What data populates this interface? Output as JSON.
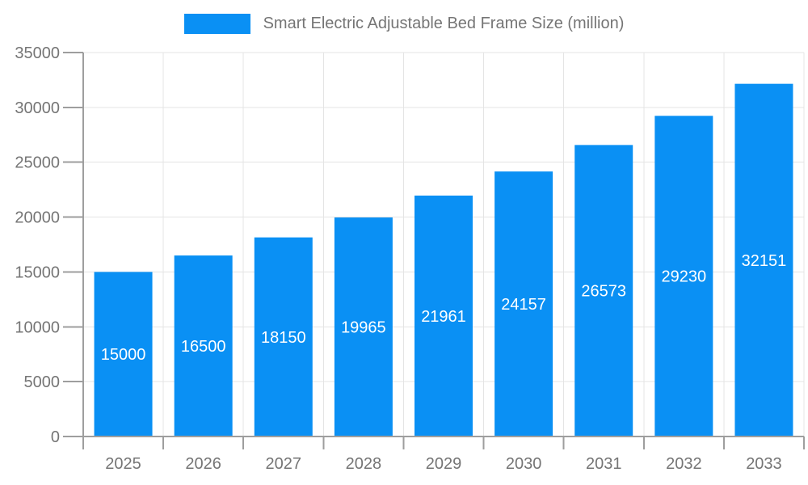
{
  "chart_data": {
    "type": "bar",
    "title": "Smart Electric Adjustable Bed Frame Size (million)",
    "legend_position": "top",
    "categories": [
      "2025",
      "2026",
      "2027",
      "2028",
      "2029",
      "2030",
      "2031",
      "2032",
      "2033"
    ],
    "series": [
      {
        "name": "Smart Electric Adjustable Bed Frame Size (million)",
        "values": [
          15000,
          16500,
          18150,
          19965,
          21961,
          24157,
          26573,
          29230,
          32151
        ]
      }
    ],
    "data_labels_visible": true,
    "xlabel": "",
    "ylabel": "",
    "ylim": [
      0,
      35000
    ],
    "ytick_step": 5000,
    "yticks": [
      0,
      5000,
      10000,
      15000,
      20000,
      25000,
      30000,
      35000
    ],
    "grid": true,
    "colors": {
      "bar": "#0a90f4",
      "grid": "#e4e4e4",
      "axis": "#9e9e9e",
      "tick_label": "#757575",
      "legend_text": "#757575",
      "data_label": "#ffffff",
      "background": "#ffffff"
    }
  }
}
